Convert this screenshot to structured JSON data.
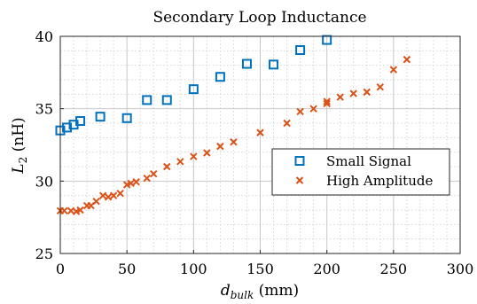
{
  "chart_data": {
    "type": "scatter",
    "title": "Secondary Loop Inductance",
    "ylabel": "L2 (nH)",
    "ylabel_parts": {
      "sym": "L",
      "sub": "2",
      "unit": " (nH)"
    },
    "xlabel": "dbulk (mm)",
    "xlabel_parts": {
      "sym": "d",
      "sub": "bulk",
      "unit": " (mm)"
    },
    "xlim": [
      0,
      300
    ],
    "ylim": [
      25,
      40
    ],
    "x_ticks": [
      "0",
      "50",
      "100",
      "150",
      "200",
      "250",
      "300"
    ],
    "y_ticks": [
      "25",
      "30",
      "35",
      "40"
    ],
    "grid": true,
    "minor_grid": true,
    "legend_position": "center-right",
    "series": [
      {
        "name": "Small Signal",
        "marker": "square",
        "color": "#0072BD",
        "x": [
          0,
          5,
          10,
          15,
          30,
          50,
          65,
          80,
          100,
          120,
          140,
          160,
          180,
          200
        ],
        "y": [
          33.5,
          33.7,
          33.9,
          34.15,
          34.45,
          34.35,
          35.6,
          35.6,
          36.35,
          37.2,
          38.1,
          38.05,
          39.05,
          39.75
        ]
      },
      {
        "name": "High Amplitude",
        "marker": "x",
        "color": "#D95319",
        "x": [
          0,
          3,
          8,
          12,
          15,
          20,
          23,
          27,
          32,
          36,
          40,
          45,
          50,
          53,
          57,
          65,
          70,
          80,
          90,
          100,
          110,
          120,
          130,
          150,
          170,
          180,
          190,
          200,
          200,
          210,
          220,
          230,
          240,
          250,
          260
        ],
        "y": [
          27.95,
          27.95,
          27.95,
          27.9,
          28.0,
          28.3,
          28.3,
          28.6,
          29.0,
          28.9,
          29.0,
          29.15,
          29.75,
          29.85,
          29.95,
          30.2,
          30.5,
          31.0,
          31.35,
          31.7,
          31.95,
          32.4,
          32.7,
          33.35,
          34.0,
          34.8,
          35.0,
          35.35,
          35.5,
          35.8,
          36.05,
          36.15,
          36.5,
          37.7,
          38.4
        ]
      }
    ]
  }
}
